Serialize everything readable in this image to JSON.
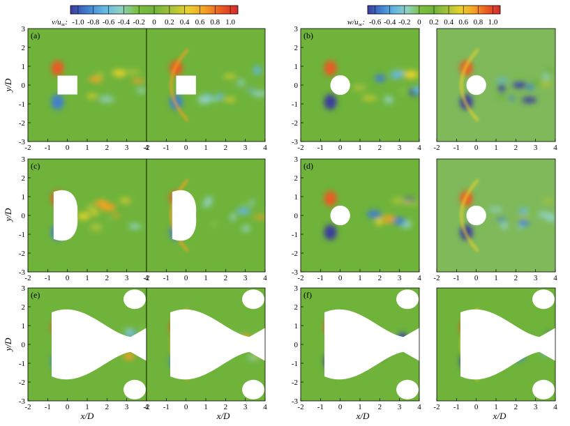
{
  "chart_data": {
    "type": "heatmap",
    "x_ticks": [
      "-2",
      "-1",
      "0",
      "1",
      "2",
      "3",
      "4"
    ],
    "y_ticks": [
      "2",
      "1",
      "0",
      "-1",
      "-2",
      "-3"
    ],
    "y_top_label": "3",
    "xlim": [
      -2,
      4
    ],
    "ylim": [
      -3,
      3
    ],
    "xlabel_var": "x",
    "xlabel_unit": "D",
    "ylabel_var": "y",
    "ylabel_unit": "D",
    "colorbars": [
      {
        "var": "v",
        "ref": "u",
        "sub": "∞",
        "ticks": [
          "-1.0",
          "-0.8",
          "-0.6",
          "-0.4",
          "-0.2",
          "0",
          "0.2",
          "0.4",
          "0.6",
          "0.8",
          "1.0"
        ],
        "range": [
          -1.0,
          1.0
        ]
      },
      {
        "var": "w",
        "ref": "u",
        "sub": "∞",
        "ticks": [
          "-0.6",
          "-0.4",
          "-0.2",
          "0",
          "0.2",
          "0.4",
          "0.6",
          "0.8",
          "1.0"
        ],
        "range": [
          -0.6,
          1.0
        ]
      }
    ],
    "colormap": [
      "#3b3b9e",
      "#3f7fcf",
      "#62b7e3",
      "#8fd1c2",
      "#7bbf3f",
      "#6fb33b",
      "#a6c23a",
      "#e8d22c",
      "#f5a224",
      "#ea5a22",
      "#d42a2a"
    ],
    "panels": [
      {
        "label": "(a)",
        "obstacle": "square",
        "cavity": "none",
        "shock": false,
        "colorbar": 0
      },
      {
        "label": "",
        "obstacle": "square",
        "cavity": "none",
        "shock": true,
        "colorbar": 0
      },
      {
        "label": "(b)",
        "obstacle": "circle",
        "cavity": "none",
        "shock": false,
        "colorbar": 1
      },
      {
        "label": "",
        "obstacle": "circle",
        "cavity": "none",
        "shock": true,
        "colorbar": 1
      },
      {
        "label": "(c)",
        "obstacle": "square",
        "cavity": "small",
        "shock": false,
        "colorbar": 0
      },
      {
        "label": "",
        "obstacle": "square",
        "cavity": "small",
        "shock": true,
        "colorbar": 0
      },
      {
        "label": "(d)",
        "obstacle": "circle",
        "cavity": "none",
        "shock": false,
        "colorbar": 1
      },
      {
        "label": "",
        "obstacle": "circle",
        "cavity": "none",
        "shock": true,
        "colorbar": 1
      },
      {
        "label": "(e)",
        "obstacle": "square",
        "cavity": "large",
        "shock": false,
        "colorbar": 0
      },
      {
        "label": "",
        "obstacle": "square",
        "cavity": "large",
        "shock": true,
        "colorbar": 0
      },
      {
        "label": "(f)",
        "obstacle": "circle",
        "cavity": "large",
        "shock": false,
        "colorbar": 1
      },
      {
        "label": "",
        "obstacle": "circle",
        "cavity": "large",
        "shock": true,
        "colorbar": 1
      }
    ]
  }
}
